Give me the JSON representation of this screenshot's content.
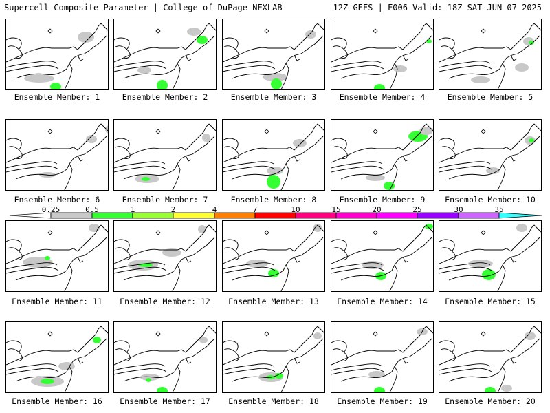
{
  "header": {
    "left": "Supercell Composite Parameter | College of DuPage NEXLAB",
    "right": "12Z GEFS | F006 Valid: 18Z SAT JUN 07 2025"
  },
  "colorbar": {
    "ticks": [
      "0.25",
      "0.5",
      "1",
      "2",
      "4",
      "7",
      "10",
      "15",
      "20",
      "25",
      "30",
      "35"
    ],
    "colors": [
      "#c8c8c8",
      "#33ff33",
      "#99ff33",
      "#ffff33",
      "#ff8000",
      "#ff0000",
      "#ff0080",
      "#ff00cc",
      "#ff00ff",
      "#9900ff",
      "#cc66ff",
      "#33ffff"
    ]
  },
  "panels": [
    {
      "caption": "Ensemble Member: 1"
    },
    {
      "caption": "Ensemble Member: 2"
    },
    {
      "caption": "Ensemble Member: 3"
    },
    {
      "caption": "Ensemble Member: 4"
    },
    {
      "caption": "Ensemble Member: 5"
    },
    {
      "caption": "Ensemble Member: 6"
    },
    {
      "caption": "Ensemble Member: 7"
    },
    {
      "caption": "Ensemble Member: 8"
    },
    {
      "caption": "Ensemble Member: 9"
    },
    {
      "caption": "Ensemble Member: 10"
    },
    {
      "caption": "Ensemble Member: 11"
    },
    {
      "caption": "Ensemble Member: 12"
    },
    {
      "caption": "Ensemble Member: 13"
    },
    {
      "caption": "Ensemble Member: 14"
    },
    {
      "caption": "Ensemble Member: 15"
    },
    {
      "caption": "Ensemble Member: 16"
    },
    {
      "caption": "Ensemble Member: 17"
    },
    {
      "caption": "Ensemble Member: 18"
    },
    {
      "caption": "Ensemble Member: 19"
    },
    {
      "caption": "Ensemble Member: 20"
    }
  ]
}
